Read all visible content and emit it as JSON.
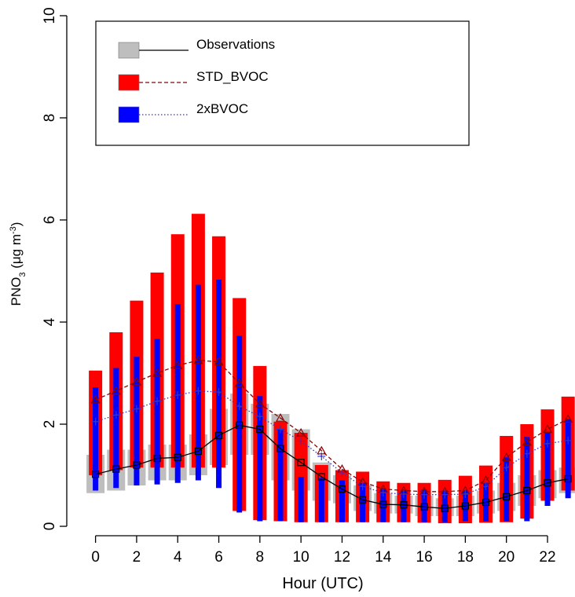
{
  "chart_data": {
    "type": "range-line",
    "ylabel": [
      {
        "text": "PNO",
        "shift": "none"
      },
      {
        "text": "3",
        "shift": "sub"
      },
      {
        "text": " (μg m",
        "shift": "none"
      },
      {
        "text": "-3",
        "shift": "super"
      },
      {
        "text": ")",
        "shift": "none"
      }
    ],
    "xlabel": "Hour (UTC)",
    "x": [
      0,
      1,
      2,
      3,
      4,
      5,
      6,
      7,
      8,
      9,
      10,
      11,
      12,
      13,
      14,
      15,
      16,
      17,
      18,
      19,
      20,
      21,
      22,
      23
    ],
    "xlim": [
      -1.4,
      23.3
    ],
    "xticks": [
      0,
      2,
      4,
      6,
      8,
      10,
      12,
      14,
      16,
      18,
      20,
      22
    ],
    "ylim": [
      0,
      10
    ],
    "yticks": [
      0,
      2,
      4,
      6,
      8,
      10
    ],
    "series": [
      {
        "name": "Observations",
        "color": "#bebebe",
        "line_color": "#000000",
        "line_style": "solid",
        "marker": "square",
        "low": [
          0.65,
          0.7,
          0.8,
          0.9,
          0.9,
          1.0,
          1.2,
          1.4,
          1.4,
          0.9,
          0.7,
          0.5,
          0.45,
          0.3,
          0.25,
          0.25,
          0.2,
          0.2,
          0.2,
          0.25,
          0.3,
          0.4,
          0.55,
          0.65
        ],
        "high": [
          1.4,
          1.5,
          1.5,
          1.6,
          1.6,
          1.8,
          2.3,
          2.6,
          2.4,
          2.2,
          1.9,
          1.25,
          1.0,
          0.8,
          0.65,
          0.6,
          0.6,
          0.55,
          0.6,
          0.7,
          0.85,
          1.0,
          1.1,
          1.15
        ],
        "values": [
          1.02,
          1.12,
          1.2,
          1.33,
          1.35,
          1.47,
          1.78,
          1.98,
          1.9,
          1.52,
          1.25,
          0.97,
          0.73,
          0.52,
          0.43,
          0.42,
          0.38,
          0.35,
          0.4,
          0.47,
          0.58,
          0.7,
          0.85,
          0.93
        ]
      },
      {
        "name": "STD_BVOC",
        "color": "#ff0000",
        "line_color": "#8b0000",
        "line_style": "dashed",
        "marker": "triangle",
        "low": [
          1.0,
          1.1,
          1.15,
          1.15,
          1.15,
          1.15,
          1.15,
          0.3,
          0.12,
          0.1,
          0.08,
          0.08,
          0.08,
          0.08,
          0.08,
          0.08,
          0.07,
          0.06,
          0.06,
          0.07,
          0.08,
          0.15,
          0.5,
          0.7
        ],
        "high": [
          3.05,
          3.8,
          4.42,
          4.97,
          5.72,
          6.12,
          5.68,
          4.47,
          3.14,
          2.05,
          1.83,
          1.2,
          1.1,
          1.07,
          0.88,
          0.85,
          0.85,
          0.91,
          0.99,
          1.19,
          1.77,
          2.0,
          2.29,
          2.54
        ],
        "values": [
          2.48,
          2.65,
          2.83,
          3.0,
          3.15,
          3.25,
          3.22,
          2.8,
          2.4,
          2.12,
          1.83,
          1.48,
          1.12,
          0.87,
          0.73,
          0.7,
          0.68,
          0.68,
          0.7,
          0.9,
          1.35,
          1.65,
          1.9,
          2.1
        ]
      },
      {
        "name": "2xBVOC",
        "color": "#0000ff",
        "line_color": "#3333cc",
        "line_style": "dotted",
        "marker": "plus",
        "low": [
          0.7,
          0.75,
          0.8,
          0.82,
          0.85,
          0.9,
          0.75,
          0.27,
          0.1,
          0.1,
          0.08,
          0.08,
          0.08,
          0.08,
          0.08,
          0.08,
          0.08,
          0.08,
          0.1,
          0.1,
          0.1,
          0.1,
          0.4,
          0.55
        ],
        "high": [
          2.72,
          3.1,
          3.32,
          3.67,
          4.35,
          4.73,
          4.83,
          3.73,
          2.55,
          1.9,
          0.97,
          0.95,
          0.9,
          0.85,
          0.75,
          0.72,
          0.72,
          0.7,
          0.7,
          0.85,
          1.35,
          1.75,
          1.85,
          2.1
        ],
        "values": [
          2.05,
          2.18,
          2.3,
          2.45,
          2.57,
          2.65,
          2.63,
          2.35,
          2.15,
          1.9,
          1.67,
          1.37,
          1.05,
          0.78,
          0.66,
          0.63,
          0.62,
          0.62,
          0.63,
          0.78,
          1.15,
          1.42,
          1.62,
          1.68
        ]
      }
    ]
  }
}
